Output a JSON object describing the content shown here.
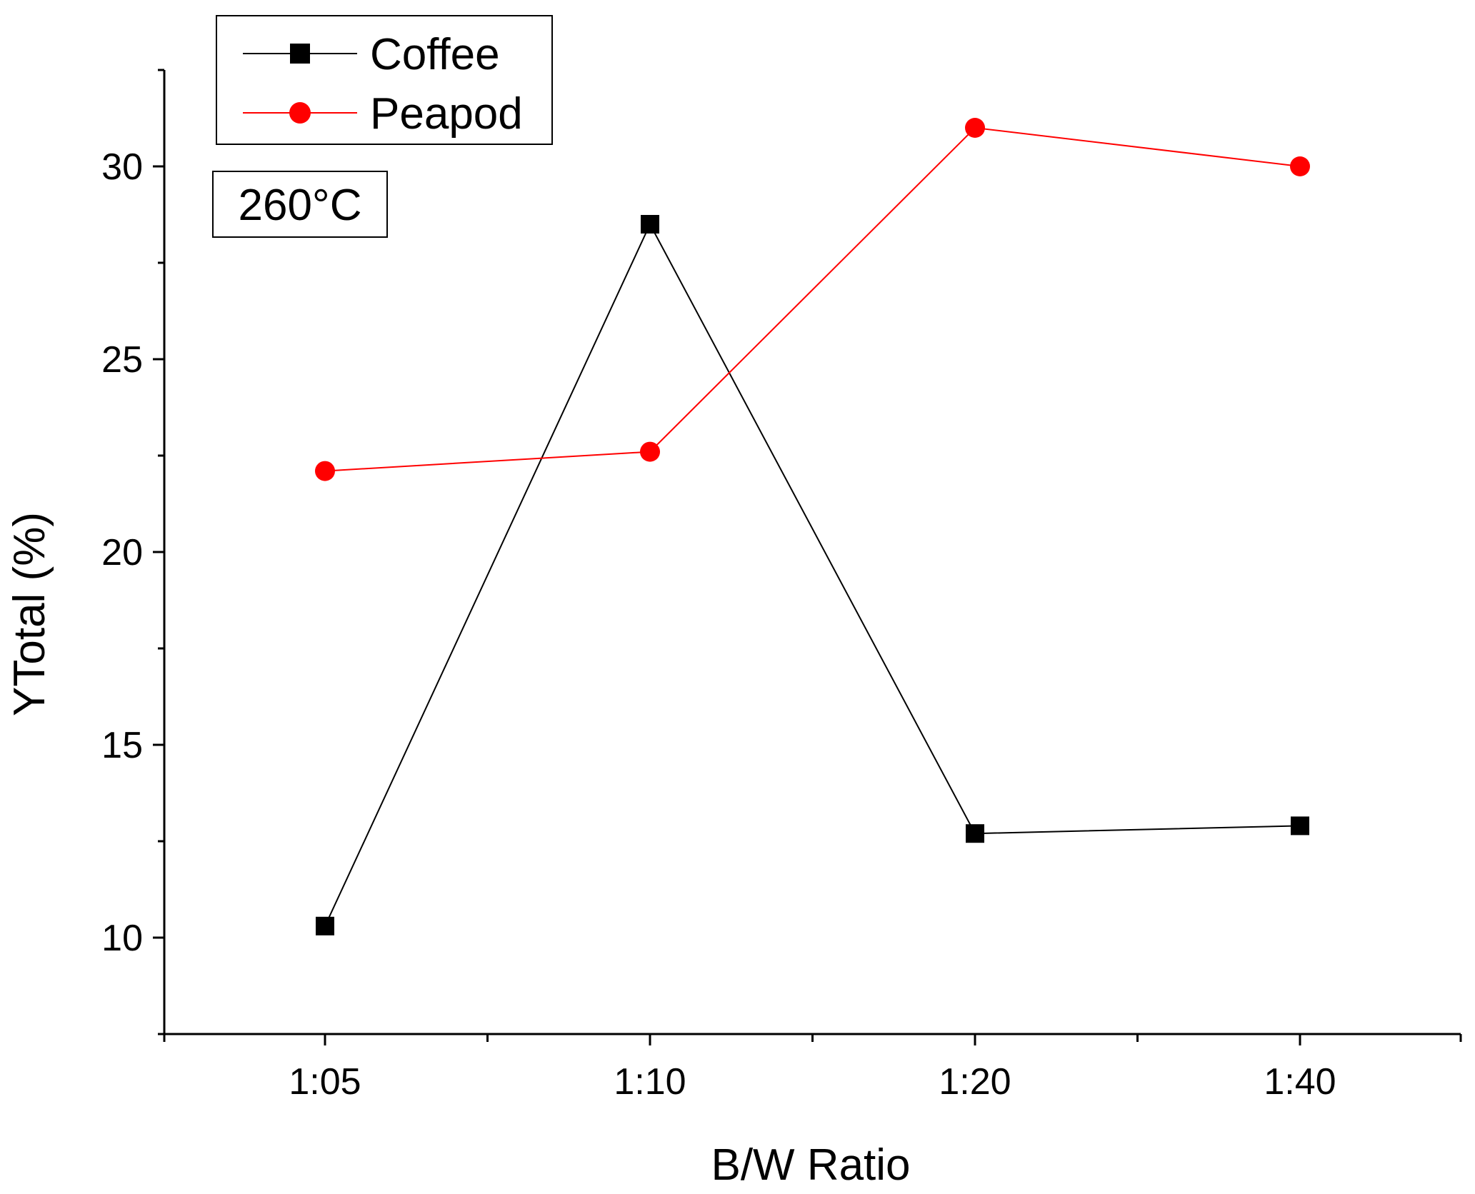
{
  "chart_data": {
    "type": "line",
    "title": "",
    "xlabel": "B/W Ratio",
    "ylabel": "YTotal (%)",
    "categories": [
      "1:05",
      "1:10",
      "1:20",
      "1:40"
    ],
    "ylim": [
      7.5,
      32.5
    ],
    "yticks": [
      10,
      15,
      20,
      25,
      30
    ],
    "grid": false,
    "legend_position": "top-left",
    "annotation": "260°C",
    "series": [
      {
        "name": "Coffee",
        "color": "#000000",
        "marker": "square",
        "values": [
          10.3,
          28.5,
          12.7,
          12.9
        ]
      },
      {
        "name": "Peapod",
        "color": "#ff0000",
        "marker": "circle",
        "values": [
          22.1,
          22.6,
          31.0,
          30.0
        ]
      }
    ]
  }
}
